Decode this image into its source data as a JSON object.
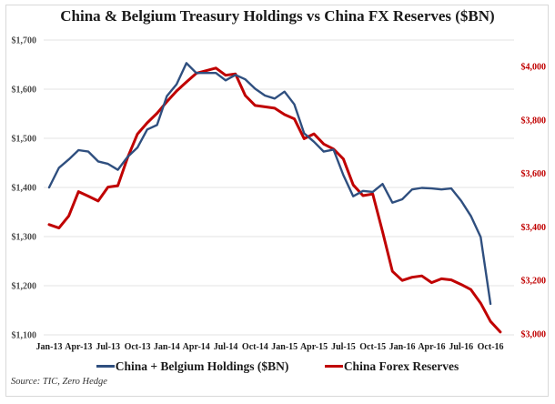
{
  "chart_data": {
    "type": "line",
    "title": "China & Belgium Treasury Holdings vs China FX Reserves ($BN)",
    "source": "Source: TIC, Zero Hedge",
    "x": [
      "Jan-13",
      "Feb-13",
      "Mar-13",
      "Apr-13",
      "May-13",
      "Jun-13",
      "Jul-13",
      "Aug-13",
      "Sep-13",
      "Oct-13",
      "Nov-13",
      "Dec-13",
      "Jan-14",
      "Feb-14",
      "Mar-14",
      "Apr-14",
      "May-14",
      "Jun-14",
      "Jul-14",
      "Aug-14",
      "Sep-14",
      "Oct-14",
      "Nov-14",
      "Dec-14",
      "Jan-15",
      "Feb-15",
      "Mar-15",
      "Apr-15",
      "May-15",
      "Jun-15",
      "Jul-15",
      "Aug-15",
      "Sep-15",
      "Oct-15",
      "Nov-15",
      "Dec-15",
      "Jan-16",
      "Feb-16",
      "Mar-16",
      "Apr-16",
      "May-16",
      "Jun-16",
      "Jul-16",
      "Aug-16",
      "Sep-16",
      "Oct-16",
      "Nov-16"
    ],
    "x_tick_labels": [
      "Jan-13",
      "Apr-13",
      "Jul-13",
      "Oct-13",
      "Jan-14",
      "Apr-14",
      "Jul-14",
      "Oct-14",
      "Jan-15",
      "Apr-15",
      "Jul-15",
      "Oct-15",
      "Jan-16",
      "Apr-16",
      "Jul-16",
      "Oct-16"
    ],
    "series": [
      {
        "name": "China + Belgium Holdings ($BN)",
        "axis": "left",
        "color": "#2f4f7f",
        "values": [
          1400,
          1440,
          1457,
          1476,
          1473,
          1453,
          1448,
          1436,
          1462,
          1481,
          1518,
          1527,
          1586,
          1610,
          1653,
          1633,
          1633,
          1633,
          1618,
          1629,
          1620,
          1601,
          1587,
          1581,
          1595,
          1569,
          1510,
          1493,
          1473,
          1477,
          1425,
          1382,
          1393,
          1391,
          1407,
          1369,
          1376,
          1396,
          1399,
          1398,
          1396,
          1398,
          1373,
          1342,
          1299,
          1163,
          null
        ]
      },
      {
        "name": "China Forex Reserves",
        "axis": "right",
        "color": "#c00000",
        "values": [
          3409,
          3396,
          3441,
          3532,
          3515,
          3497,
          3549,
          3554,
          3659,
          3747,
          3789,
          3825,
          3868,
          3908,
          3942,
          3974,
          3984,
          3994,
          3967,
          3972,
          3891,
          3854,
          3849,
          3844,
          3820,
          3804,
          3730,
          3748,
          3710,
          3691,
          3654,
          3557,
          3517,
          3523,
          3382,
          3234,
          3200,
          3212,
          3217,
          3192,
          3206,
          3202,
          3185,
          3166,
          3115,
          3047,
          3007
        ]
      }
    ],
    "y_left": {
      "label": "",
      "ylim": [
        1100,
        1700
      ],
      "ticks": [
        1100,
        1200,
        1300,
        1400,
        1500,
        1600,
        1700
      ],
      "tick_labels": [
        "$1,100",
        "$1,200",
        "$1,300",
        "$1,400",
        "$1,500",
        "$1,600",
        "$1,700"
      ],
      "color": "#4a4a4a"
    },
    "y_right": {
      "label": "",
      "ylim": [
        3000,
        4000
      ],
      "ticks": [
        3000,
        3200,
        3400,
        3600,
        3800,
        4000
      ],
      "tick_labels": [
        "$3,000",
        "$3,200",
        "$3,400",
        "$3,600",
        "$3,800",
        "$4,000"
      ],
      "color": "#c00000"
    },
    "grid": true,
    "legend_position": "bottom"
  }
}
